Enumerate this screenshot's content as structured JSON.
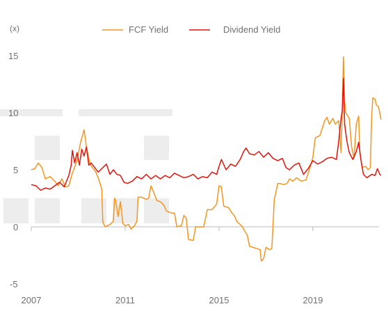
{
  "chart_data": {
    "type": "line",
    "unit_label": "(x)",
    "title": "",
    "xlabel": "",
    "ylabel": "",
    "x_ticks": [
      "2007",
      "2011",
      "2015",
      "2019"
    ],
    "y_ticks": [
      "15",
      "10",
      "5",
      "0",
      "-5"
    ],
    "ylim": [
      -5,
      15
    ],
    "xlim": [
      2007.0,
      2022.0
    ],
    "grid": false,
    "legend_position": "top-center",
    "series": [
      {
        "name": "FCF Yield",
        "color": "#F7941D",
        "points": [
          [
            2007.0,
            5.0
          ],
          [
            2007.15,
            5.1
          ],
          [
            2007.3,
            5.6
          ],
          [
            2007.45,
            5.2
          ],
          [
            2007.6,
            4.2
          ],
          [
            2007.8,
            4.4
          ],
          [
            2008.0,
            4.0
          ],
          [
            2008.15,
            3.6
          ],
          [
            2008.3,
            4.2
          ],
          [
            2008.45,
            3.5
          ],
          [
            2008.6,
            3.6
          ],
          [
            2008.75,
            4.7
          ],
          [
            2008.95,
            5.8
          ],
          [
            2009.1,
            7.4
          ],
          [
            2009.25,
            8.5
          ],
          [
            2009.35,
            7.0
          ],
          [
            2009.5,
            5.5
          ],
          [
            2009.6,
            5.2
          ],
          [
            2009.75,
            4.8
          ],
          [
            2009.9,
            4.0
          ],
          [
            2010.0,
            3.3
          ],
          [
            2010.05,
            0.4
          ],
          [
            2010.15,
            0.0
          ],
          [
            2010.35,
            0.2
          ],
          [
            2010.5,
            0.5
          ],
          [
            2010.55,
            2.5
          ],
          [
            2010.6,
            2.3
          ],
          [
            2010.7,
            0.9
          ],
          [
            2010.8,
            2.2
          ],
          [
            2010.9,
            0.3
          ],
          [
            2011.0,
            0.1
          ],
          [
            2011.15,
            0.2
          ],
          [
            2011.25,
            -0.2
          ],
          [
            2011.4,
            0.1
          ],
          [
            2011.5,
            0.5
          ],
          [
            2011.55,
            2.6
          ],
          [
            2011.7,
            2.6
          ],
          [
            2011.9,
            2.4
          ],
          [
            2012.0,
            2.5
          ],
          [
            2012.1,
            3.6
          ],
          [
            2012.2,
            3.1
          ],
          [
            2012.35,
            2.3
          ],
          [
            2012.5,
            2.2
          ],
          [
            2012.65,
            1.9
          ],
          [
            2012.75,
            1.4
          ],
          [
            2012.85,
            1.3
          ],
          [
            2013.0,
            1.2
          ],
          [
            2013.1,
            1.2
          ],
          [
            2013.2,
            0.0
          ],
          [
            2013.4,
            0.1
          ],
          [
            2013.5,
            1.0
          ],
          [
            2013.6,
            0.8
          ],
          [
            2013.7,
            -1.1
          ],
          [
            2013.9,
            -1.2
          ],
          [
            2014.0,
            0.0
          ],
          [
            2014.2,
            0.0
          ],
          [
            2014.35,
            0.0
          ],
          [
            2014.5,
            1.5
          ],
          [
            2014.7,
            1.5
          ],
          [
            2014.9,
            2.0
          ],
          [
            2015.0,
            3.6
          ],
          [
            2015.1,
            3.5
          ],
          [
            2015.2,
            1.8
          ],
          [
            2015.4,
            1.7
          ],
          [
            2015.55,
            1.2
          ],
          [
            2015.65,
            1.0
          ],
          [
            2015.75,
            0.5
          ],
          [
            2015.85,
            0.3
          ],
          [
            2016.0,
            0.0
          ],
          [
            2016.1,
            -0.4
          ],
          [
            2016.2,
            -0.7
          ],
          [
            2016.3,
            -1.7
          ],
          [
            2016.45,
            -1.8
          ],
          [
            2016.6,
            -1.9
          ],
          [
            2016.75,
            -2.0
          ],
          [
            2016.8,
            -3.0
          ],
          [
            2016.9,
            -2.8
          ],
          [
            2017.0,
            -1.8
          ],
          [
            2017.15,
            -2.0
          ],
          [
            2017.25,
            -1.9
          ],
          [
            2017.3,
            0.0
          ],
          [
            2017.35,
            2.3
          ],
          [
            2017.4,
            2.8
          ],
          [
            2017.5,
            3.8
          ],
          [
            2017.6,
            3.8
          ],
          [
            2017.75,
            3.7
          ],
          [
            2017.9,
            3.8
          ],
          [
            2018.0,
            4.2
          ],
          [
            2018.15,
            4.0
          ],
          [
            2018.3,
            4.3
          ],
          [
            2018.5,
            4.0
          ],
          [
            2018.7,
            4.1
          ],
          [
            2018.85,
            5.0
          ],
          [
            2019.0,
            6.1
          ],
          [
            2019.1,
            7.8
          ],
          [
            2019.3,
            8.0
          ],
          [
            2019.5,
            9.3
          ],
          [
            2019.6,
            9.6
          ],
          [
            2019.7,
            9.0
          ],
          [
            2019.85,
            9.5
          ],
          [
            2019.95,
            9.0
          ],
          [
            2020.1,
            9.3
          ],
          [
            2020.2,
            6.5
          ],
          [
            2020.25,
            10.0
          ],
          [
            2020.3,
            14.9
          ],
          [
            2020.35,
            11.0
          ],
          [
            2020.4,
            10.0
          ],
          [
            2020.55,
            9.5
          ],
          [
            2020.65,
            7.0
          ],
          [
            2020.75,
            6.0
          ],
          [
            2020.85,
            9.0
          ],
          [
            2020.95,
            9.7
          ],
          [
            2021.0,
            6.5
          ],
          [
            2021.1,
            5.2
          ],
          [
            2021.25,
            5.3
          ],
          [
            2021.35,
            5.0
          ],
          [
            2021.45,
            5.2
          ],
          [
            2021.5,
            9.5
          ],
          [
            2021.55,
            11.3
          ],
          [
            2021.65,
            11.2
          ],
          [
            2021.7,
            10.7
          ],
          [
            2021.8,
            10.5
          ],
          [
            2021.9,
            9.4
          ]
        ]
      },
      {
        "name": "Dividend Yield",
        "color": "#E3120B",
        "points": [
          [
            2007.0,
            3.7
          ],
          [
            2007.2,
            3.6
          ],
          [
            2007.4,
            3.2
          ],
          [
            2007.6,
            3.4
          ],
          [
            2007.8,
            3.3
          ],
          [
            2008.0,
            3.6
          ],
          [
            2008.2,
            3.9
          ],
          [
            2008.4,
            3.5
          ],
          [
            2008.6,
            4.5
          ],
          [
            2008.7,
            5.4
          ],
          [
            2008.75,
            6.7
          ],
          [
            2008.85,
            5.6
          ],
          [
            2008.95,
            6.5
          ],
          [
            2009.05,
            5.4
          ],
          [
            2009.15,
            6.8
          ],
          [
            2009.25,
            6.2
          ],
          [
            2009.35,
            7.0
          ],
          [
            2009.45,
            5.4
          ],
          [
            2009.55,
            5.6
          ],
          [
            2009.7,
            5.2
          ],
          [
            2009.85,
            4.8
          ],
          [
            2010.0,
            5.1
          ],
          [
            2010.2,
            5.5
          ],
          [
            2010.35,
            4.6
          ],
          [
            2010.5,
            5.0
          ],
          [
            2010.65,
            4.6
          ],
          [
            2010.8,
            4.5
          ],
          [
            2010.95,
            3.9
          ],
          [
            2011.1,
            3.8
          ],
          [
            2011.3,
            4.0
          ],
          [
            2011.5,
            4.4
          ],
          [
            2011.7,
            4.2
          ],
          [
            2011.9,
            4.6
          ],
          [
            2012.1,
            4.2
          ],
          [
            2012.3,
            4.5
          ],
          [
            2012.5,
            4.2
          ],
          [
            2012.7,
            4.5
          ],
          [
            2012.9,
            4.3
          ],
          [
            2013.1,
            4.7
          ],
          [
            2013.3,
            4.5
          ],
          [
            2013.5,
            4.3
          ],
          [
            2013.7,
            4.4
          ],
          [
            2013.9,
            4.6
          ],
          [
            2014.1,
            4.2
          ],
          [
            2014.3,
            4.4
          ],
          [
            2014.5,
            4.3
          ],
          [
            2014.7,
            4.8
          ],
          [
            2014.9,
            4.6
          ],
          [
            2015.0,
            5.3
          ],
          [
            2015.1,
            5.9
          ],
          [
            2015.3,
            5.0
          ],
          [
            2015.5,
            5.5
          ],
          [
            2015.7,
            5.3
          ],
          [
            2015.9,
            5.9
          ],
          [
            2016.05,
            6.6
          ],
          [
            2016.15,
            6.9
          ],
          [
            2016.3,
            6.4
          ],
          [
            2016.5,
            6.3
          ],
          [
            2016.7,
            6.6
          ],
          [
            2016.9,
            6.1
          ],
          [
            2017.1,
            6.5
          ],
          [
            2017.3,
            6.0
          ],
          [
            2017.5,
            5.8
          ],
          [
            2017.7,
            6.0
          ],
          [
            2017.85,
            5.2
          ],
          [
            2018.0,
            5.0
          ],
          [
            2018.2,
            5.4
          ],
          [
            2018.4,
            5.6
          ],
          [
            2018.6,
            4.6
          ],
          [
            2018.8,
            5.1
          ],
          [
            2019.0,
            5.8
          ],
          [
            2019.2,
            5.5
          ],
          [
            2019.4,
            5.7
          ],
          [
            2019.6,
            6.0
          ],
          [
            2019.8,
            6.1
          ],
          [
            2020.0,
            5.9
          ],
          [
            2020.1,
            7.5
          ],
          [
            2020.2,
            9.5
          ],
          [
            2020.25,
            10.2
          ],
          [
            2020.3,
            13.0
          ],
          [
            2020.35,
            9.0
          ],
          [
            2020.45,
            7.5
          ],
          [
            2020.55,
            6.5
          ],
          [
            2020.7,
            5.9
          ],
          [
            2020.85,
            6.6
          ],
          [
            2020.95,
            7.4
          ],
          [
            2021.05,
            5.8
          ],
          [
            2021.15,
            4.6
          ],
          [
            2021.3,
            4.3
          ],
          [
            2021.5,
            4.6
          ],
          [
            2021.65,
            4.5
          ],
          [
            2021.75,
            5.1
          ],
          [
            2021.85,
            4.6
          ],
          [
            2021.9,
            4.5
          ]
        ]
      }
    ]
  }
}
